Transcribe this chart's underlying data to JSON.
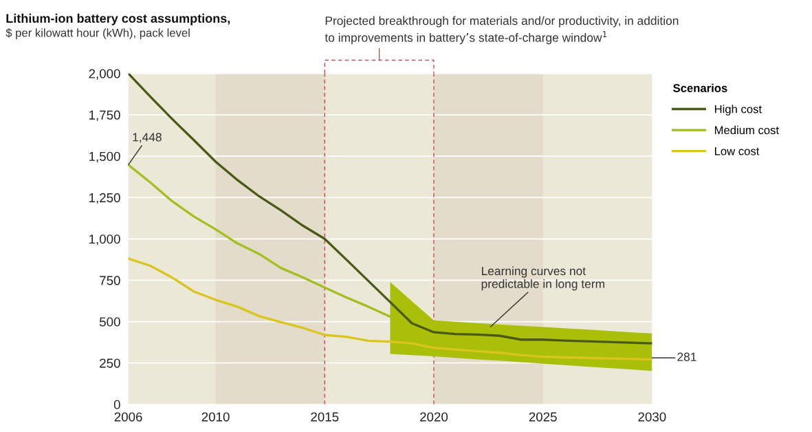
{
  "chart_data": {
    "type": "line",
    "title": "Lithium-ion battery cost assumptions,",
    "subtitle": "$ per kilowatt hour (kWh), pack level",
    "legend_title": "Scenarios",
    "legend": "top right",
    "grid": "y",
    "xlim": [
      2006,
      2030
    ],
    "xticks": [
      2006,
      2010,
      2015,
      2020,
      2025,
      2030
    ],
    "ylim": [
      0,
      2000
    ],
    "yticks": [
      0,
      {
        "value": 250,
        "label": "250"
      },
      {
        "value": 500,
        "label": "500"
      },
      {
        "value": 750,
        "label": "750"
      },
      {
        "value": 1000,
        "label": "1,000"
      },
      {
        "value": 1250,
        "label": "1,250"
      },
      {
        "value": 1500,
        "label": "1,500"
      },
      {
        "value": 1750,
        "label": "1,750"
      },
      {
        "value": 2000,
        "label": "2,000"
      }
    ],
    "series": [
      {
        "name": "High cost",
        "color": "#4a5a14",
        "x": [
          2006,
          2007,
          2008,
          2009,
          2010,
          2011,
          2012,
          2013,
          2014,
          2015,
          2016,
          2017,
          2018,
          2019,
          2020,
          2021,
          2022,
          2023,
          2024,
          2025,
          2026,
          2027,
          2028,
          2029,
          2030
        ],
        "values": [
          2000,
          1861,
          1726,
          1598,
          1467,
          1356,
          1257,
          1172,
          1080,
          1000,
          874,
          746,
          618,
          490,
          436,
          425,
          422,
          415,
          391,
          391,
          385,
          381,
          377,
          373,
          369
        ],
        "lower": [
          null,
          null,
          null,
          null,
          null,
          null,
          null,
          null,
          null,
          null,
          null,
          null,
          305,
          298,
          290,
          281,
          272,
          264,
          255,
          246,
          237,
          228,
          220,
          211,
          202
        ],
        "upper": [
          null,
          null,
          null,
          null,
          null,
          null,
          null,
          null,
          null,
          null,
          null,
          null,
          739,
          623,
          507,
          499,
          491,
          483,
          475,
          468,
          460,
          452,
          444,
          436,
          428
        ]
      },
      {
        "name": "Medium cost",
        "color": "#a3be1e",
        "x": [
          2006,
          2007,
          2008,
          2009,
          2010,
          2011,
          2012,
          2013,
          2014,
          2015,
          2016,
          2017,
          2018
        ],
        "values": [
          1448,
          1342,
          1229,
          1136,
          1058,
          973,
          909,
          824,
          767,
          706,
          646,
          590,
          530
        ]
      },
      {
        "name": "Low cost",
        "color": "#d9c51c",
        "x": [
          2006,
          2007,
          2008,
          2009,
          2010,
          2011,
          2012,
          2013,
          2014,
          2015,
          2016,
          2017,
          2018,
          2019,
          2020,
          2021,
          2022,
          2023,
          2024,
          2025,
          2026,
          2027,
          2028,
          2029,
          2030
        ],
        "values": [
          881,
          838,
          767,
          682,
          632,
          590,
          533,
          497,
          462,
          419,
          408,
          384,
          379,
          369,
          342,
          331,
          321,
          312,
          298,
          288,
          284,
          281,
          277,
          275,
          271
        ]
      }
    ],
    "bands": [
      {
        "axis": "x",
        "from": 2010,
        "to": 2015,
        "color": "#e3dccb"
      },
      {
        "axis": "x",
        "from": 2020,
        "to": 2025,
        "color": "#e3dccb"
      }
    ],
    "ref_lines": [
      {
        "axis": "x",
        "value": 2015,
        "color": "#c0504d",
        "line_style": "dashed"
      },
      {
        "axis": "x",
        "value": 2020,
        "color": "#c0504d",
        "line_style": "dashed"
      }
    ],
    "annotations": [
      "Projected breakthrough for materials and/or productivity, in addition\nto improvements in battery’s state-of-charge window$^{1}$",
      {
        "text": "Learning curves not\npredictable in long term",
        "x": 2022.6,
        "y": 469
      },
      {
        "text": "1,448",
        "x": 2006,
        "y": 1448
      },
      {
        "text": "281",
        "x": 2030,
        "y": 281
      }
    ]
  }
}
